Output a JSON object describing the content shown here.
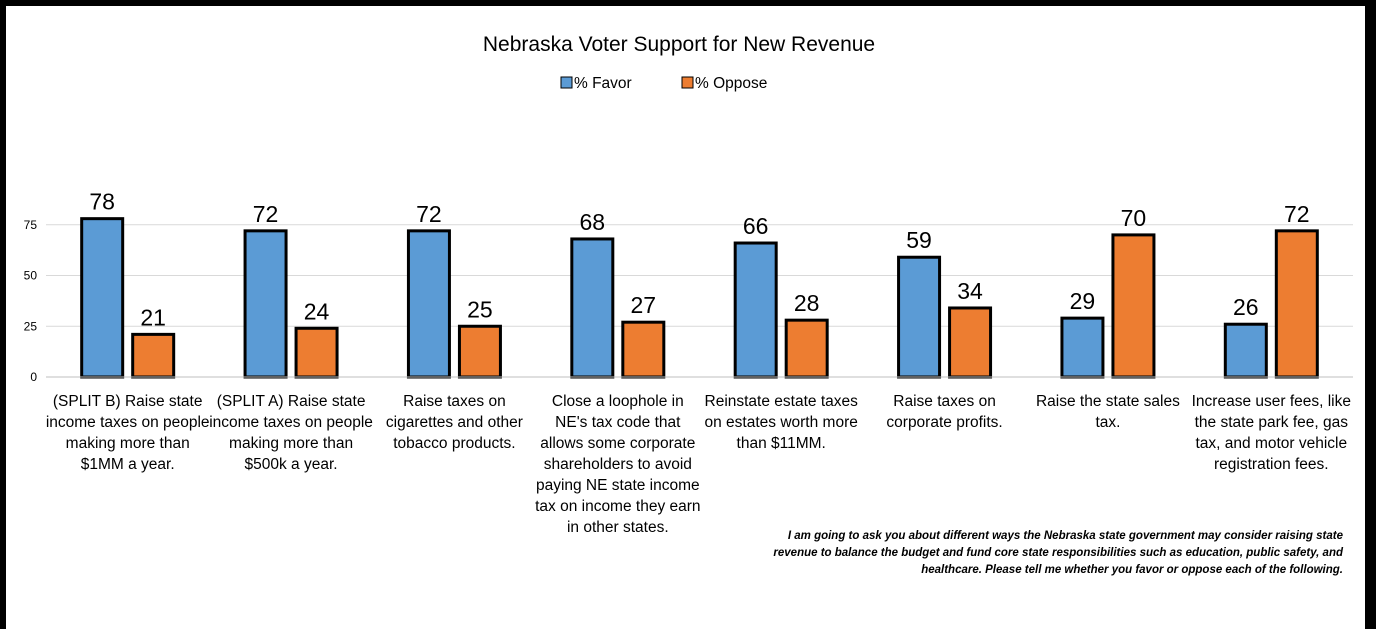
{
  "chart_data": {
    "type": "bar",
    "title": "Nebraska Voter Support for New Revenue",
    "categories": [
      "(SPLIT B) Raise state income taxes on people making more than $1MM a year.",
      "(SPLIT A) Raise state income taxes on people making more than $500k a year.",
      "Raise taxes on cigarettes and other tobacco products.",
      "Close a loophole in NE's tax code that allows some corporate shareholders to avoid paying NE state income tax on income they earn in other states.",
      "Reinstate estate taxes on estates worth more than $11MM.",
      "Raise taxes on corporate profits.",
      "Raise the state sales tax.",
      "Increase user fees, like the state park fee, gas tax, and motor vehicle registration fees."
    ],
    "series": [
      {
        "name": "% Favor",
        "color": "#5B9BD5",
        "values": [
          78,
          72,
          72,
          68,
          66,
          59,
          29,
          26
        ]
      },
      {
        "name": "% Oppose",
        "color": "#ED7D31",
        "values": [
          21,
          24,
          25,
          27,
          28,
          34,
          70,
          72
        ]
      }
    ],
    "y_ticks": [
      "0",
      "25",
      "50",
      "75"
    ],
    "ylim": [
      0,
      100
    ],
    "legend_position": "top",
    "grid": true,
    "xlabel": "",
    "ylabel": ""
  },
  "footnote": "I am going to ask you about different ways the Nebraska state government may consider raising state revenue to balance the budget and fund core state responsibilities such as education, public safety, and healthcare. Please tell me whether you favor or oppose each of the following."
}
